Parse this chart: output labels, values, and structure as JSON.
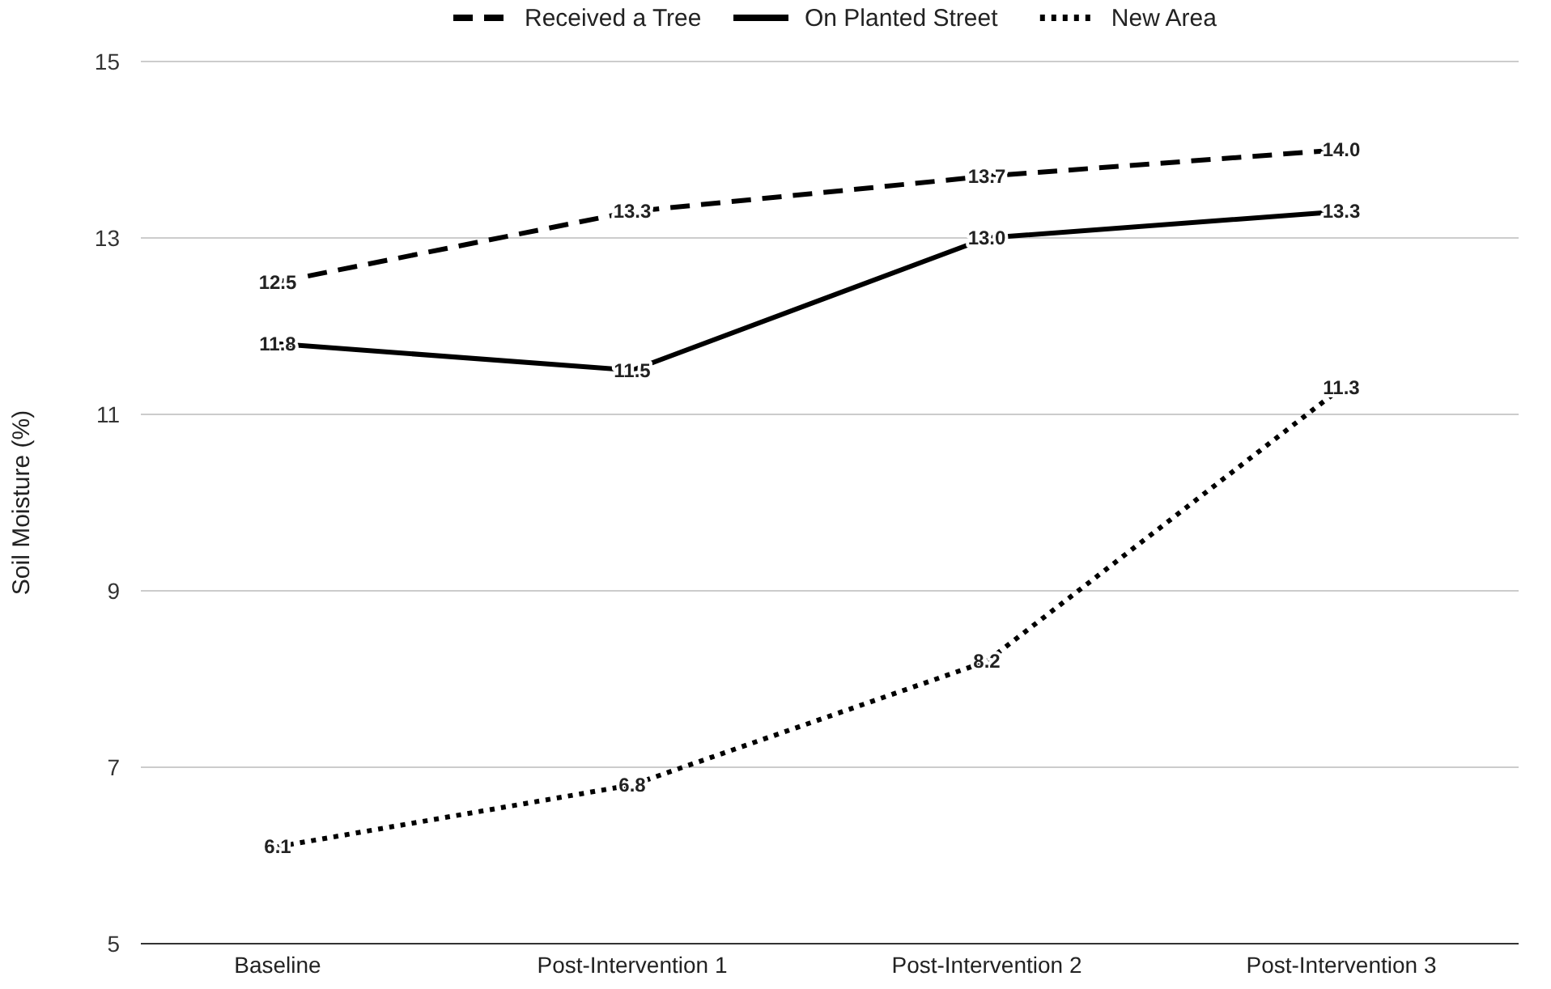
{
  "chart_data": {
    "type": "line",
    "ylabel": "Soil Moisture (%)",
    "categories": [
      "Baseline",
      "Post-Intervention 1",
      "Post-Intervention 2",
      "Post-Intervention 3"
    ],
    "series": [
      {
        "name": "Received a Tree",
        "color": "#000000",
        "line_style": "dashed",
        "values": [
          12.5,
          13.3,
          13.7,
          14.0
        ],
        "value_labels": [
          "12.5",
          "13.3",
          "13.7",
          "14.0"
        ]
      },
      {
        "name": "On Planted Street",
        "color": "#000000",
        "line_style": "solid",
        "values": [
          11.8,
          11.5,
          13.0,
          13.3
        ],
        "value_labels": [
          "11.8",
          "11.5",
          "13.0",
          "13.3"
        ]
      },
      {
        "name": "New Area",
        "color": "#000000",
        "line_style": "dotted",
        "values": [
          6.1,
          6.8,
          8.2,
          11.3
        ],
        "value_labels": [
          "6.1",
          "6.8",
          "8.2",
          "11.3"
        ]
      }
    ],
    "ylim": [
      5,
      15
    ],
    "yticks": [
      5,
      7,
      9,
      11,
      13,
      15
    ],
    "grid": "y",
    "legend": "top",
    "marker": "none"
  }
}
